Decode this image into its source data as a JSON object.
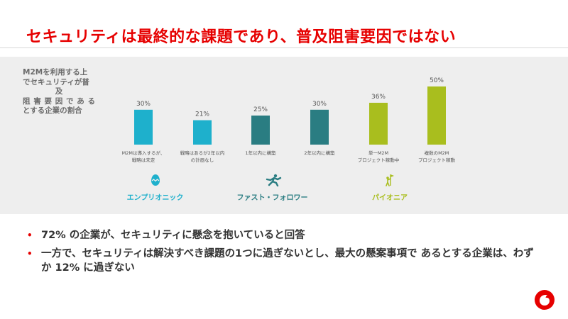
{
  "title": "セキュリティは最終的な課題であり、普及阻害要因ではない",
  "chart_data": {
    "type": "bar",
    "ylabel_lines": [
      "M2Mを利用する上",
      "でセキュリティが普",
      "及",
      "阻害要因である",
      "とする企業の割合"
    ],
    "categories": [
      [
        "M2Mは導入するが、",
        "戦略は未定"
      ],
      [
        "戦略はあるが2年以内",
        "の計画なし"
      ],
      [
        "1年以内に構築"
      ],
      [
        "2年以内に構築"
      ],
      [
        "単一M2M",
        "プロジェクト稼動中"
      ],
      [
        "複数のM2M",
        "プロジェクト稼動"
      ]
    ],
    "values": [
      30,
      21,
      25,
      30,
      36,
      50
    ],
    "value_labels": [
      "30%",
      "21%",
      "25%",
      "30%",
      "36%",
      "50%"
    ],
    "bar_colors": [
      "#1eb0cc",
      "#1eb0cc",
      "#2a7d82",
      "#2a7d82",
      "#a9be1e",
      "#a9be1e"
    ],
    "ylim": [
      0,
      50
    ],
    "groups": [
      {
        "label": "エンプリオニック",
        "color": "#1eb0cc",
        "icon": "egg-icon",
        "bars": [
          0,
          1
        ]
      },
      {
        "label": "ファスト・フォロワー",
        "color": "#2a7d82",
        "icon": "runner-icon",
        "bars": [
          2,
          3
        ]
      },
      {
        "label": "パイオニア",
        "color": "#a9be1e",
        "icon": "flag-climber-icon",
        "bars": [
          4,
          5
        ]
      }
    ]
  },
  "bullets": [
    "72% の企業が、セキュリティに懸念を抱いていると回答",
    "一方で、セキュリティは解決すべき課題の1つに過ぎないとし、最大の懸案事項で あるとする企業は、わずか 12% に過ぎない"
  ],
  "bullet_marker": "•",
  "brand_color": "#e60000",
  "logo_icon": "vodafone-logo-icon"
}
